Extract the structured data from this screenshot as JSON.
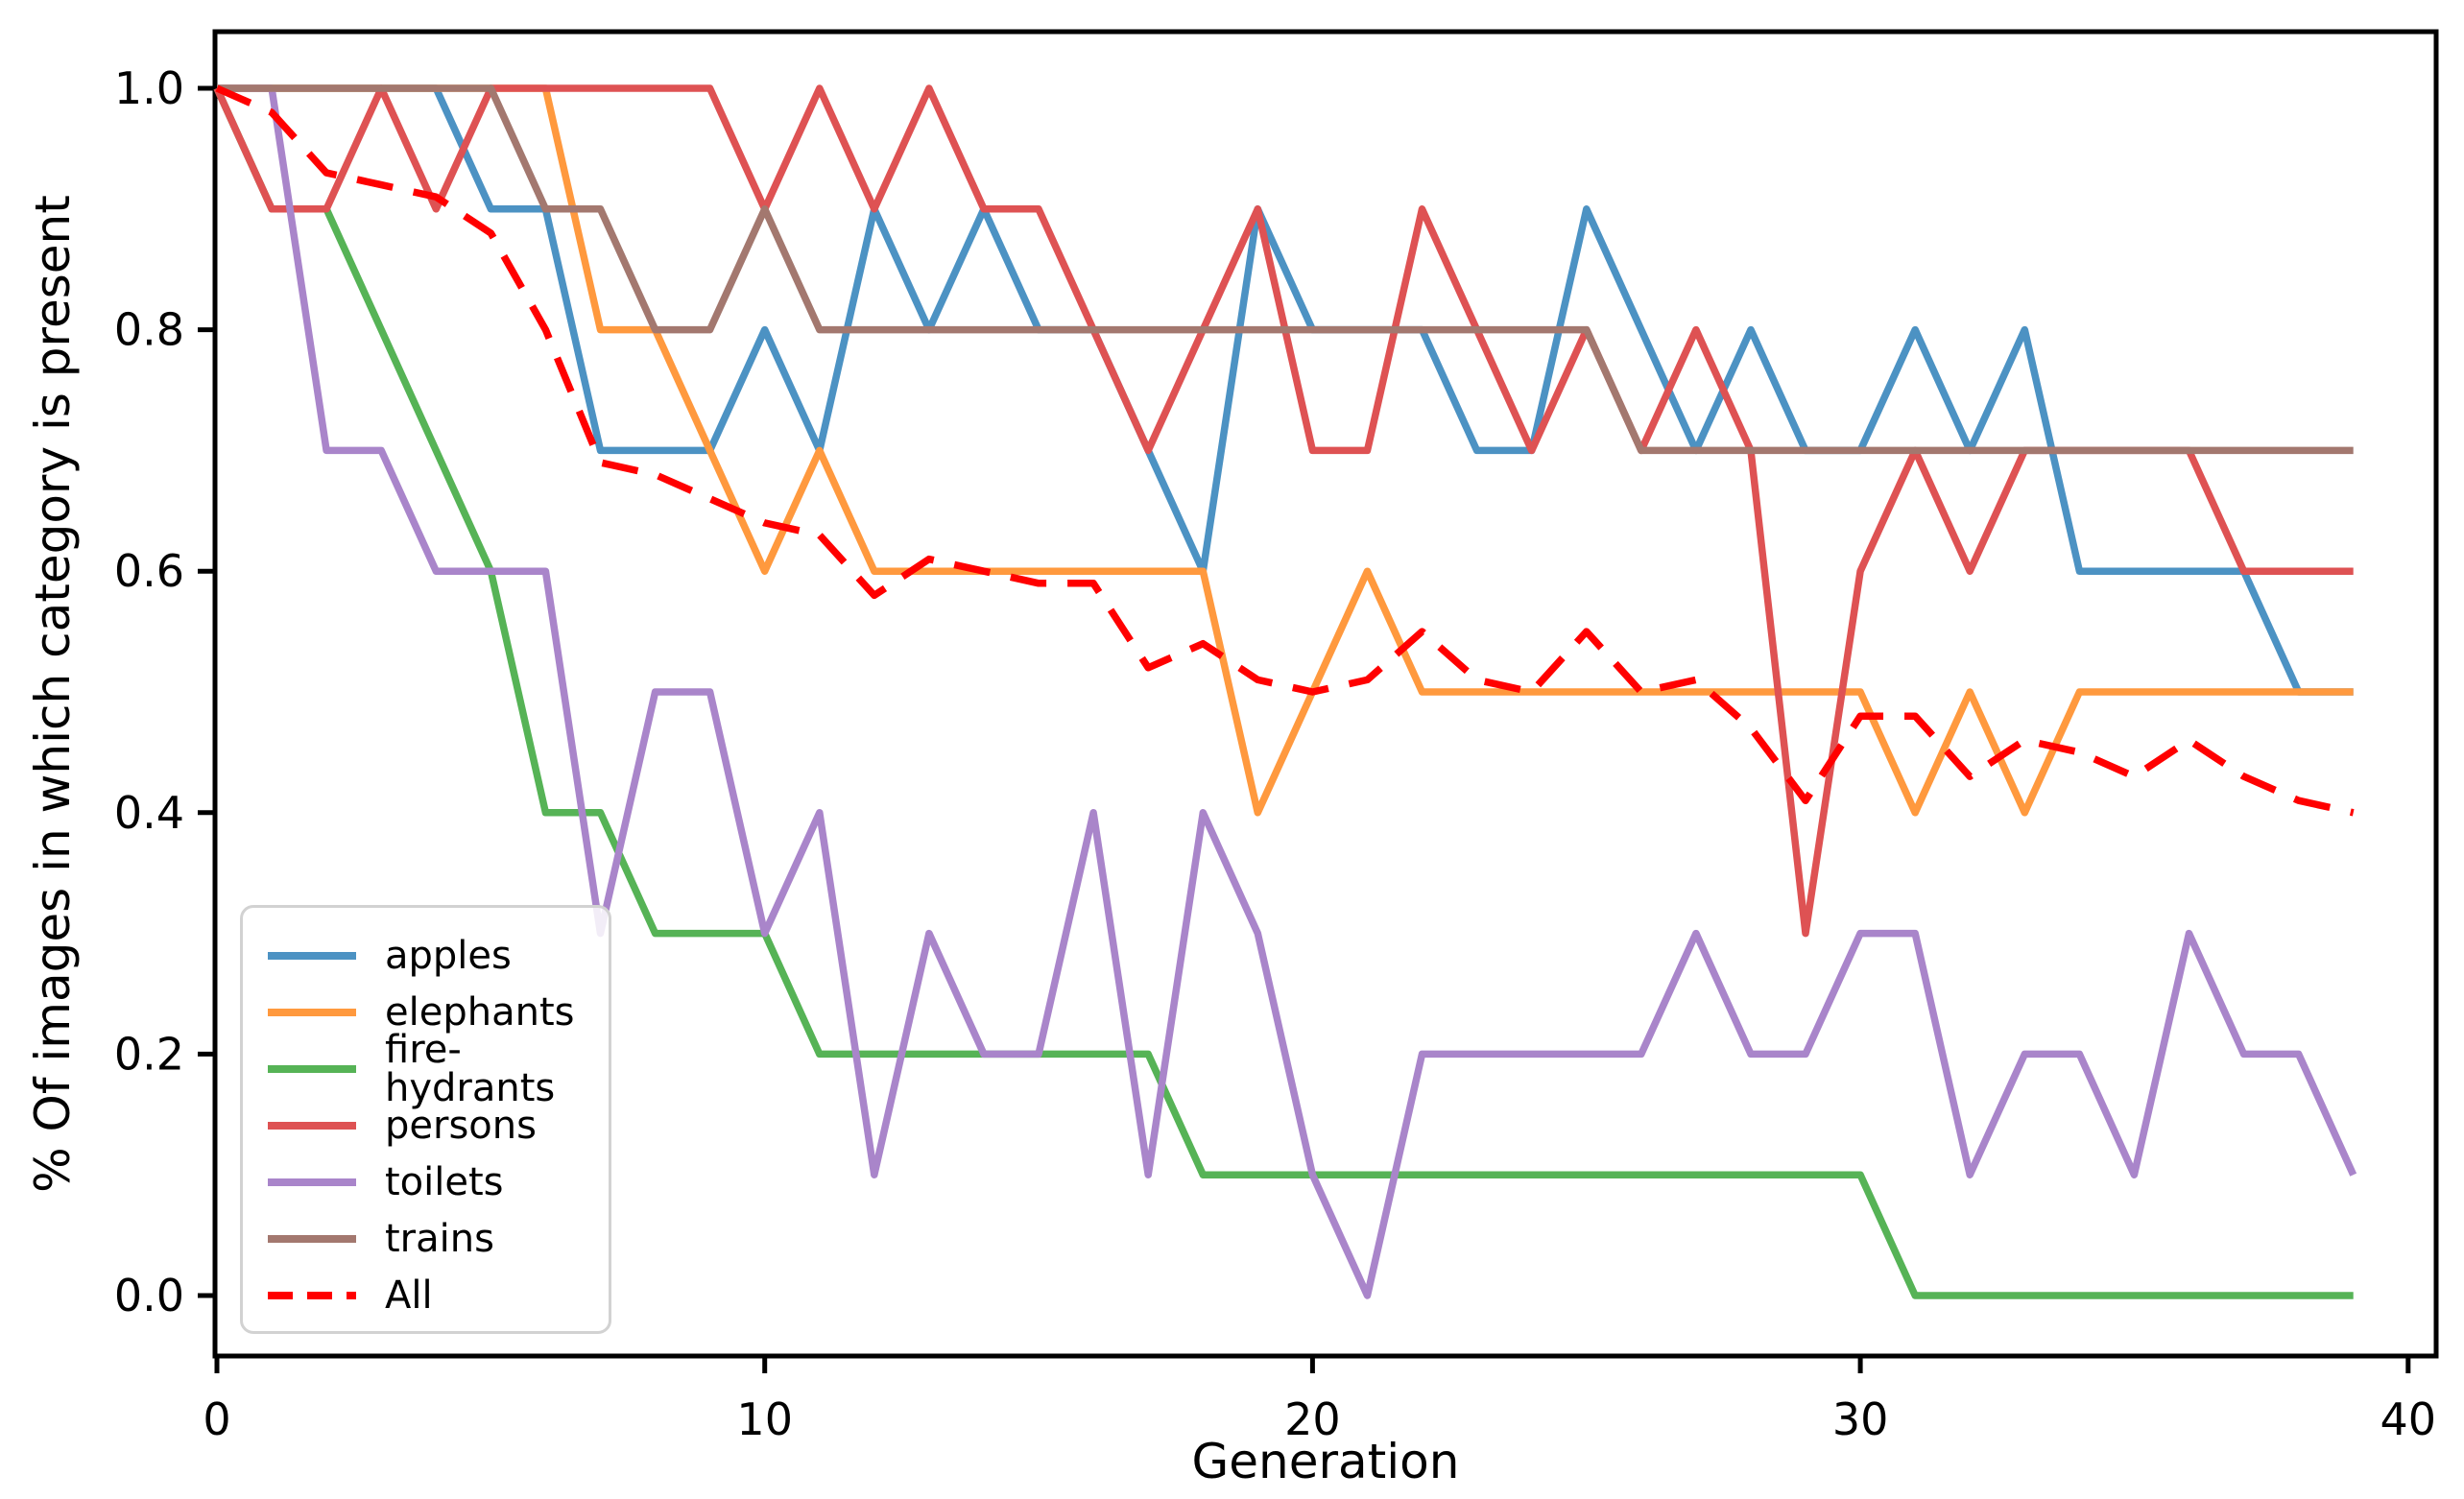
{
  "chart_data": {
    "type": "line",
    "title": "",
    "xlabel": "Generation",
    "ylabel": "% Of images in which category is present",
    "grid": false,
    "legend_position": "lower left",
    "xlim": [
      -0.05,
      40.55
    ],
    "ylim": [
      -0.05,
      1.047
    ],
    "xtick_labels": [
      "0",
      "10",
      "20",
      "30",
      "40"
    ],
    "xtick_values": [
      0,
      10,
      20,
      30,
      40
    ],
    "ytick_labels": [
      "0.0",
      "0.2",
      "0.4",
      "0.6",
      "0.8",
      "1.0"
    ],
    "ytick_values": [
      0.0,
      0.2,
      0.4,
      0.6,
      0.8,
      1.0
    ],
    "x": [
      0,
      1,
      2,
      3,
      4,
      5,
      6,
      7,
      8,
      9,
      10,
      11,
      12,
      13,
      14,
      15,
      16,
      17,
      18,
      19,
      20,
      21,
      22,
      23,
      24,
      25,
      26,
      27,
      28,
      29,
      30,
      31,
      32,
      33,
      34,
      35,
      36,
      37,
      38,
      39
    ],
    "series": [
      {
        "name": "apples",
        "color": "#4C92C3",
        "dash": null,
        "values": [
          1.0,
          1.0,
          1.0,
          1.0,
          1.0,
          0.9,
          0.9,
          0.7,
          0.7,
          0.7,
          0.8,
          0.7,
          0.9,
          0.8,
          0.9,
          0.8,
          0.8,
          0.7,
          0.6,
          0.9,
          0.8,
          0.8,
          0.8,
          0.7,
          0.7,
          0.9,
          0.8,
          0.7,
          0.8,
          0.7,
          0.7,
          0.8,
          0.7,
          0.8,
          0.6,
          0.6,
          0.6,
          0.6,
          0.5,
          0.5
        ]
      },
      {
        "name": "elephants",
        "color": "#FF993E",
        "dash": null,
        "values": [
          1.0,
          1.0,
          1.0,
          1.0,
          1.0,
          1.0,
          1.0,
          0.8,
          0.8,
          0.7,
          0.6,
          0.7,
          0.6,
          0.6,
          0.6,
          0.6,
          0.6,
          0.6,
          0.6,
          0.4,
          0.5,
          0.6,
          0.5,
          0.5,
          0.5,
          0.5,
          0.5,
          0.5,
          0.5,
          0.5,
          0.5,
          0.4,
          0.5,
          0.4,
          0.5,
          0.5,
          0.5,
          0.5,
          0.5,
          0.5
        ]
      },
      {
        "name": "fire-hydrants",
        "color": "#56B356",
        "dash": null,
        "values": [
          1.0,
          0.9,
          0.9,
          0.8,
          0.7,
          0.6,
          0.4,
          0.4,
          0.3,
          0.3,
          0.3,
          0.2,
          0.2,
          0.2,
          0.2,
          0.2,
          0.2,
          0.2,
          0.1,
          0.1,
          0.1,
          0.1,
          0.1,
          0.1,
          0.1,
          0.1,
          0.1,
          0.1,
          0.1,
          0.1,
          0.1,
          0.0,
          0.0,
          0.0,
          0.0,
          0.0,
          0.0,
          0.0,
          0.0,
          0.0
        ]
      },
      {
        "name": "persons",
        "color": "#DE5253",
        "dash": null,
        "values": [
          1.0,
          0.9,
          0.9,
          1.0,
          0.9,
          1.0,
          1.0,
          1.0,
          1.0,
          1.0,
          0.9,
          1.0,
          0.9,
          1.0,
          0.9,
          0.9,
          0.8,
          0.7,
          0.8,
          0.9,
          0.7,
          0.7,
          0.9,
          0.8,
          0.7,
          0.8,
          0.7,
          0.8,
          0.7,
          0.3,
          0.6,
          0.7,
          0.6,
          0.7,
          0.7,
          0.7,
          0.7,
          0.6,
          0.6,
          0.6
        ]
      },
      {
        "name": "toilets",
        "color": "#A985CA",
        "dash": null,
        "values": [
          1.0,
          1.0,
          0.7,
          0.7,
          0.6,
          0.6,
          0.6,
          0.3,
          0.5,
          0.5,
          0.3,
          0.4,
          0.1,
          0.3,
          0.2,
          0.2,
          0.4,
          0.1,
          0.4,
          0.3,
          0.1,
          0.0,
          0.2,
          0.2,
          0.2,
          0.2,
          0.2,
          0.3,
          0.2,
          0.2,
          0.3,
          0.3,
          0.1,
          0.2,
          0.2,
          0.1,
          0.3,
          0.2,
          0.2,
          0.1
        ]
      },
      {
        "name": "trains",
        "color": "#A3786F",
        "dash": null,
        "values": [
          1.0,
          1.0,
          1.0,
          1.0,
          1.0,
          1.0,
          0.9,
          0.9,
          0.8,
          0.8,
          0.9,
          0.8,
          0.8,
          0.8,
          0.8,
          0.8,
          0.8,
          0.8,
          0.8,
          0.8,
          0.8,
          0.8,
          0.8,
          0.8,
          0.8,
          0.8,
          0.7,
          0.7,
          0.7,
          0.7,
          0.7,
          0.7,
          0.7,
          0.7,
          0.7,
          0.7,
          0.7,
          0.7,
          0.7,
          0.7
        ]
      },
      {
        "name": "All",
        "color": "#FF0000",
        "dash": [
          38,
          22
        ],
        "values": [
          1.0,
          0.98,
          0.93,
          0.92,
          0.91,
          0.88,
          0.8,
          0.69,
          0.68,
          0.66,
          0.64,
          0.63,
          0.58,
          0.61,
          0.6,
          0.59,
          0.59,
          0.52,
          0.54,
          0.51,
          0.5,
          0.51,
          0.55,
          0.51,
          0.5,
          0.55,
          0.5,
          0.51,
          0.47,
          0.41,
          0.48,
          0.48,
          0.43,
          0.46,
          0.45,
          0.43,
          0.46,
          0.43,
          0.41,
          0.4
        ]
      }
    ],
    "axis_color": "#000000",
    "legend_border_color": "#d2d2d2"
  }
}
